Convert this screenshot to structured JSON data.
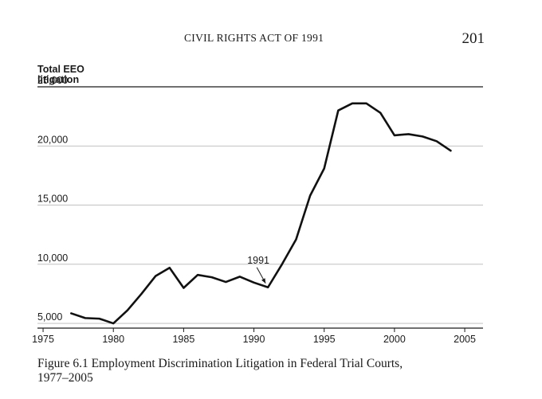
{
  "header": {
    "running_title": "CIVIL RIGHTS ACT OF 1991",
    "page_number": "201"
  },
  "caption": {
    "line1": "Figure 6.1  Employment Discrimination Litigation in Federal Trial Courts,",
    "line2": "1977–2005"
  },
  "chart_data": {
    "type": "line",
    "ylabel_lines": [
      "Total EEO",
      "litigation"
    ],
    "xlabel": "",
    "xlim": [
      1974.6,
      2006.3
    ],
    "ylim": [
      4600,
      25000
    ],
    "xticks": [
      1975,
      1980,
      1985,
      1990,
      1995,
      2000,
      2005
    ],
    "xtick_labels": [
      "1975",
      "1980",
      "1985",
      "1990",
      "1995",
      "2000",
      "2005"
    ],
    "yticks": [
      5000,
      10000,
      15000,
      20000,
      25000
    ],
    "ytick_labels": [
      "5,000",
      "10,000",
      "15,000",
      "20,000",
      "25,000"
    ],
    "grid": "horizontal",
    "series": [
      {
        "name": "Total EEO litigation",
        "x": [
          1977,
          1978,
          1979,
          1980,
          1981,
          1982,
          1983,
          1984,
          1985,
          1986,
          1987,
          1988,
          1989,
          1990,
          1991,
          1992,
          1993,
          1994,
          1995,
          1996,
          1997,
          1998,
          1999,
          2000,
          2001,
          2002,
          2003,
          2004
        ],
        "y": [
          5850,
          5450,
          5400,
          5000,
          6100,
          7500,
          9000,
          9700,
          8000,
          9100,
          8900,
          8500,
          8950,
          8450,
          8050,
          10000,
          12100,
          15800,
          18100,
          23000,
          23600,
          23600,
          22800,
          20900,
          21000,
          20800,
          20400,
          19600
        ]
      }
    ],
    "annotations": [
      {
        "text": "1991",
        "x": 1991,
        "y": 8050
      }
    ]
  }
}
